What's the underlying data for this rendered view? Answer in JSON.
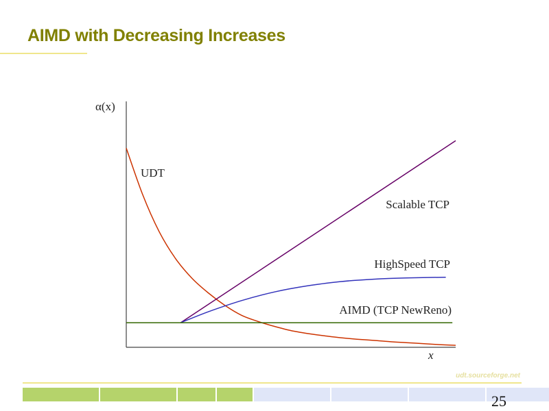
{
  "slide": {
    "title": "AIMD with Decreasing Increases",
    "footer_link": "udt.sourceforge.net",
    "page_number": "25"
  },
  "colors": {
    "title": "#808000",
    "accent_rule": "#f0e68c",
    "udt": "#cc3300",
    "scalable": "#660066",
    "highspeed": "#3333bb",
    "aimd": "#336600",
    "axis": "#444444",
    "bar_filled": "#b5d36b",
    "bar_empty": "#e0e6f8"
  },
  "progress": {
    "segments_total": 10,
    "segments_filled": 4,
    "fraction": 0.4
  },
  "chart_data": {
    "type": "line",
    "ylabel": "α(x)",
    "xlabel": "x",
    "xlim": [
      0,
      10
    ],
    "ylim": [
      0,
      10
    ],
    "grid": false,
    "legend": "inline labels",
    "series": [
      {
        "name": "UDT",
        "x": [
          0,
          0.5,
          1,
          1.5,
          2,
          2.5,
          3,
          3.5,
          4,
          4.5,
          5,
          5.5,
          6,
          6.5,
          7,
          7.5,
          8,
          8.5,
          9,
          9.5,
          10
        ],
        "y": [
          8.1,
          6.2,
          4.7,
          3.6,
          2.8,
          2.2,
          1.7,
          1.3,
          1.05,
          0.85,
          0.68,
          0.56,
          0.47,
          0.39,
          0.33,
          0.28,
          0.23,
          0.19,
          0.15,
          0.11,
          0.08
        ]
      },
      {
        "name": "Scalable TCP",
        "x": [
          1.65,
          10
        ],
        "y": [
          1.0,
          8.4
        ]
      },
      {
        "name": "HighSpeed TCP",
        "x": [
          1.65,
          2.5,
          3.5,
          4.5,
          5.5,
          6.5,
          7.5,
          8.5,
          9.7
        ],
        "y": [
          1.0,
          1.45,
          1.9,
          2.25,
          2.5,
          2.67,
          2.77,
          2.82,
          2.85
        ]
      },
      {
        "name": "AIMD (TCP NewReno)",
        "x": [
          0,
          9.9
        ],
        "y": [
          1.0,
          1.0
        ]
      }
    ]
  }
}
